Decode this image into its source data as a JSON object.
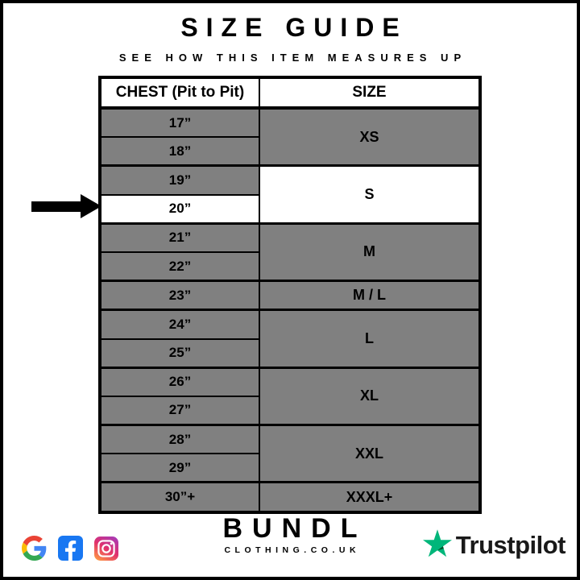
{
  "header": {
    "title": "SIZE GUIDE",
    "subtitle": "SEE HOW THIS ITEM MEASURES UP"
  },
  "table": {
    "columns": {
      "chest": "CHEST (Pit to Pit)",
      "size": "SIZE"
    },
    "rows": [
      {
        "chest": "17”",
        "size": "XS",
        "size_rowspan": 2,
        "group_start": true
      },
      {
        "chest": "18”"
      },
      {
        "chest": "19”",
        "size": "S",
        "size_rowspan": 2,
        "group_start": true,
        "size_white": true
      },
      {
        "chest": "20”",
        "chest_white": true,
        "arrow_target": true
      },
      {
        "chest": "21”",
        "size": "M",
        "size_rowspan": 2,
        "group_start": true
      },
      {
        "chest": "22”"
      },
      {
        "chest": "23”",
        "size": "M / L",
        "size_rowspan": 1,
        "group_start": true
      },
      {
        "chest": "24”",
        "size": "L",
        "size_rowspan": 2,
        "group_start": true
      },
      {
        "chest": "25”"
      },
      {
        "chest": "26”",
        "size": "XL",
        "size_rowspan": 2,
        "group_start": true
      },
      {
        "chest": "27”"
      },
      {
        "chest": "28”",
        "size": "XXL",
        "size_rowspan": 2,
        "group_start": true
      },
      {
        "chest": "29”"
      },
      {
        "chest": "30”+",
        "size": "XXXL+",
        "size_rowspan": 1,
        "group_start": true
      }
    ],
    "highlighted_chest": "20”",
    "highlighted_size": "S"
  },
  "footer": {
    "social_icons": [
      "google-icon",
      "facebook-icon",
      "instagram-icon"
    ],
    "brand": {
      "name": "BUNDL",
      "domain": "CLOTHING.CO.UK"
    },
    "trustpilot_label": "Trustpilot"
  },
  "colors": {
    "cell_gray": "#808080",
    "highlight_white": "#ffffff",
    "border_black": "#000000",
    "trustpilot_green": "#00B67A",
    "trustpilot_dark_green": "#005128",
    "facebook_blue": "#1877F2",
    "google_blue": "#4285F4",
    "google_red": "#EA4335",
    "google_yellow": "#FBBC05",
    "google_green": "#34A853",
    "instagram_gradient_top": "#A93AB4",
    "instagram_gradient_mid": "#E1306C",
    "instagram_gradient_bottom": "#FD9346"
  }
}
